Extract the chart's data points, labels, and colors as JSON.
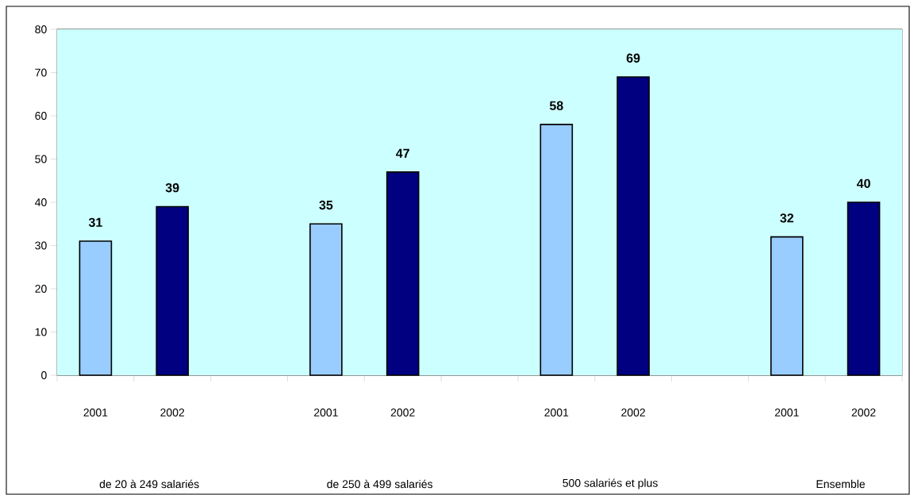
{
  "chart_data": {
    "type": "bar",
    "categories": [
      "2001",
      "2002",
      null,
      "2001",
      "2002",
      null,
      "2001",
      "2002",
      null,
      "2001",
      "2002"
    ],
    "values": [
      31,
      39,
      null,
      35,
      47,
      null,
      58,
      69,
      null,
      32,
      40
    ],
    "colors": [
      "#99ccff",
      "#000080",
      null,
      "#99ccff",
      "#000080",
      null,
      "#99ccff",
      "#000080",
      null,
      "#99ccff",
      "#000080"
    ],
    "ylim": [
      0,
      80
    ],
    "yticks": [
      0,
      10,
      20,
      30,
      40,
      50,
      60,
      70,
      80
    ],
    "grid": "y",
    "data_labels": true,
    "annotations": [
      "de 20 à 249 salariés",
      "de 250 à 499 salariés",
      "500 salariés et plus",
      "Ensemble"
    ]
  }
}
